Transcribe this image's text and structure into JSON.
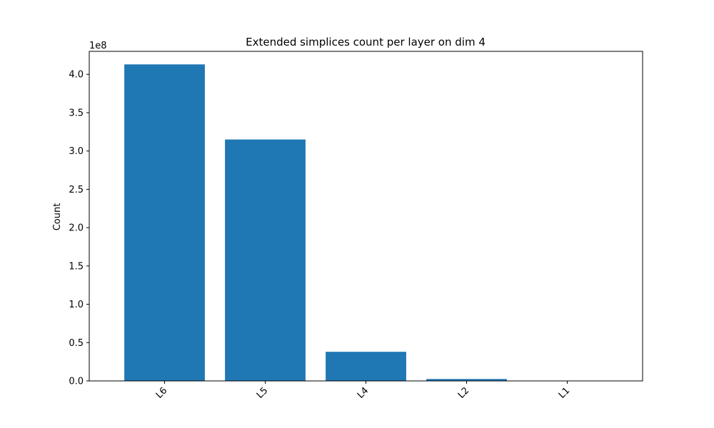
{
  "chart_data": {
    "type": "bar",
    "title": "Extended simplices count per layer on dim 4",
    "xlabel": "",
    "ylabel": "Count",
    "y_multiplier_label": "1e8",
    "categories": [
      "L6",
      "L5",
      "L4",
      "L2",
      "L1"
    ],
    "values": [
      413000000,
      315000000,
      38000000,
      2500000,
      0
    ],
    "ylim": [
      0,
      430000000
    ],
    "y_ticks": [
      0,
      50000000,
      100000000,
      150000000,
      200000000,
      250000000,
      300000000,
      350000000,
      400000000
    ],
    "y_tick_labels": [
      "0.0",
      "0.5",
      "1.0",
      "1.5",
      "2.0",
      "2.5",
      "3.0",
      "3.5",
      "4.0"
    ],
    "bar_color": "#1f77b4",
    "grid": false,
    "legend": "none"
  }
}
